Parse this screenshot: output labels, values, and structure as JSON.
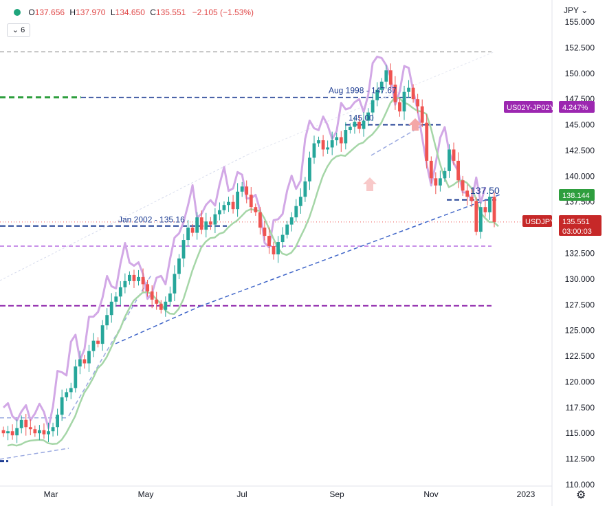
{
  "header": {
    "O": "137.656",
    "H": "137.970",
    "L": "134.650",
    "C": "135.551",
    "change": "−2.105 (−1.53%)",
    "o_key": "O",
    "h_key": "H",
    "l_key": "L",
    "c_key": "C",
    "indicators_label": "6",
    "currency": "JPY",
    "currency_chevron": "⌄"
  },
  "settings_icon": "⚙",
  "colors": {
    "up": "#26a69a",
    "down": "#ef5350",
    "ma": "#a5d6a7",
    "spread": "#d2a8e6",
    "trend": "#3f65c8",
    "bg": "#ffffff"
  },
  "chart_data": {
    "type": "line",
    "y_axis": {
      "min": 110.0,
      "max": 155.0,
      "ticks": [
        "110.000",
        "112.500",
        "115.000",
        "117.500",
        "120.000",
        "122.500",
        "125.000",
        "127.500",
        "130.000",
        "132.500",
        "135.000",
        "137.500",
        "140.000",
        "142.500",
        "145.000",
        "147.500",
        "150.000",
        "152.500",
        "155.000"
      ]
    },
    "x_axis": {
      "ticks": [
        "Mar",
        "May",
        "Jul",
        "Sep",
        "Nov",
        "2023"
      ]
    },
    "series": [
      {
        "name": "USDJPY",
        "close": [
          115.0,
          115.2,
          114.8,
          115.5,
          116.3,
          115.6,
          115.4,
          115.0,
          115.3,
          114.9,
          115.2,
          115.6,
          116.8,
          118.5,
          119.0,
          119.4,
          121.5,
          122.2,
          121.8,
          123.0,
          124.0,
          123.7,
          125.5,
          126.5,
          127.8,
          128.3,
          129.2,
          129.8,
          130.4,
          129.8,
          130.2,
          129.5,
          128.8,
          128.0,
          127.6,
          127.0,
          127.8,
          128.6,
          130.5,
          132.0,
          133.8,
          135.0,
          134.5,
          136.0,
          134.8,
          135.6,
          135.3,
          136.3,
          136.7,
          137.2,
          137.5,
          136.8,
          138.5,
          139.0,
          138.2,
          137.0,
          136.5,
          135.0,
          134.2,
          133.2,
          132.4,
          133.6,
          134.3,
          135.3,
          136.0,
          137.1,
          138.0,
          139.5,
          141.8,
          143.2,
          143.5,
          142.6,
          142.8,
          143.5,
          143.8,
          143.2,
          144.5,
          144.8,
          145.3,
          144.6,
          145.4,
          146.2,
          147.4,
          148.4,
          149.2,
          150.3,
          148.9,
          147.2,
          146.3,
          148.2,
          148.6,
          147.5,
          146.8,
          145.2,
          141.5,
          139.8,
          139.1,
          139.8,
          140.5,
          142.6,
          141.5,
          139.6,
          138.6,
          138.0,
          137.6,
          134.6,
          137.0,
          136.5,
          138.0,
          135.55
        ]
      },
      {
        "name": "US02Y-JP02Y",
        "last": "4.247%"
      }
    ],
    "price_labels": [
      {
        "name": "USDJPY",
        "value": "135.551",
        "time": "03:00:03"
      },
      {
        "name": "MA",
        "value": "138.144"
      },
      {
        "name": "US02Y-JP02Y",
        "value": "4.247%"
      }
    ],
    "annotations": [
      "Aug 1998 - 147.67",
      "145.00",
      "Jan 2002 - 135.16",
      "137.50"
    ]
  }
}
